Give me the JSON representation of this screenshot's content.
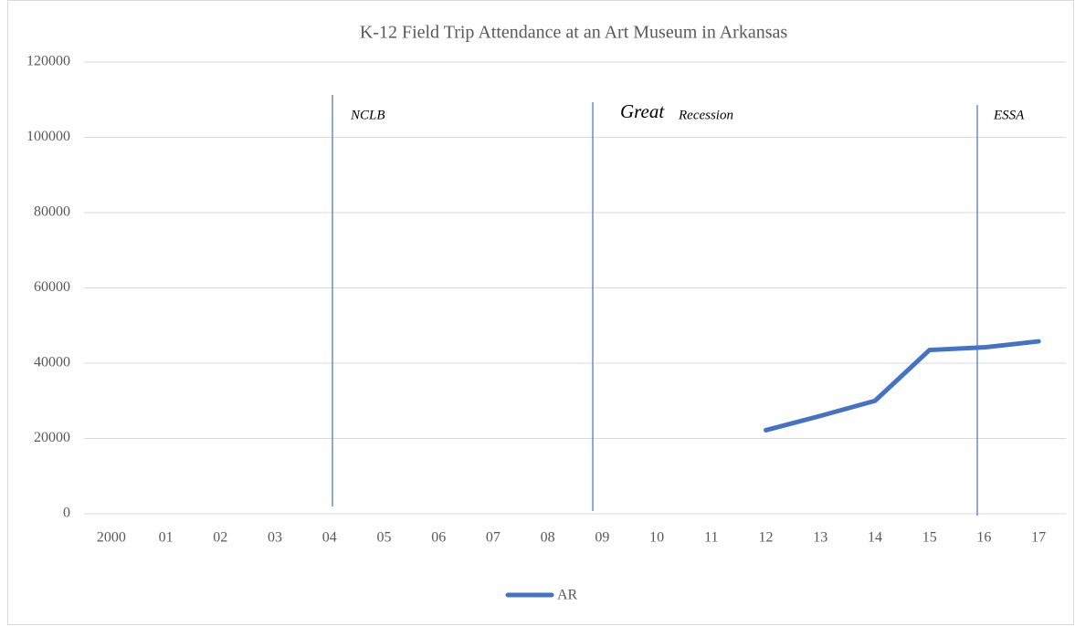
{
  "chart_data": {
    "type": "line",
    "title": "K-12 Field Trip Attendance at an Art Museum in Arkansas",
    "categories": [
      "2000",
      "01",
      "02",
      "03",
      "04",
      "05",
      "06",
      "07",
      "08",
      "09",
      "10",
      "11",
      "12",
      "13",
      "14",
      "15",
      "16",
      "17"
    ],
    "series": [
      {
        "name": "AR",
        "color": "#4472c4",
        "values": [
          null,
          null,
          null,
          null,
          null,
          null,
          null,
          null,
          null,
          null,
          null,
          null,
          22200,
          26000,
          30000,
          43500,
          44200,
          45800
        ]
      }
    ],
    "ylim": [
      0,
      120000
    ],
    "yticks": [
      0,
      20000,
      40000,
      60000,
      80000,
      100000,
      120000
    ],
    "grid": true,
    "annotations": [
      "NCLB",
      "Great",
      "Recession",
      "ESSA"
    ],
    "legend": "bottom"
  }
}
